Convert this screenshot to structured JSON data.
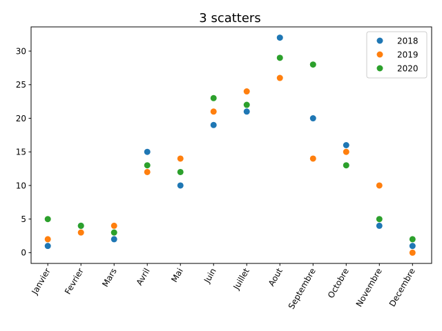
{
  "chart_data": {
    "type": "scatter",
    "title": "3 scatters",
    "xlabel": "",
    "ylabel": "",
    "categories": [
      "Janvier",
      "Fevrier",
      "Mars",
      "Avril",
      "Mai",
      "Juin",
      "Juillet",
      "Aout",
      "Septembre",
      "Octobre",
      "Novembre",
      "Decembre"
    ],
    "ylim": [
      -1.6,
      33.6
    ],
    "yticks": [
      0,
      5,
      10,
      15,
      20,
      25,
      30
    ],
    "xtick_rotation_deg": 60,
    "grid": false,
    "legend_position": "upper right",
    "series": [
      {
        "name": "2018",
        "color": "#1f77b4",
        "values": [
          1,
          4,
          2,
          15,
          10,
          19,
          21,
          32,
          20,
          16,
          4,
          1
        ]
      },
      {
        "name": "2019",
        "color": "#ff7f0e",
        "values": [
          2,
          3,
          4,
          12,
          14,
          21,
          24,
          26,
          14,
          15,
          10,
          0
        ]
      },
      {
        "name": "2020",
        "color": "#2ca02c",
        "values": [
          5,
          4,
          3,
          13,
          12,
          23,
          22,
          29,
          28,
          13,
          5,
          2
        ]
      }
    ]
  }
}
